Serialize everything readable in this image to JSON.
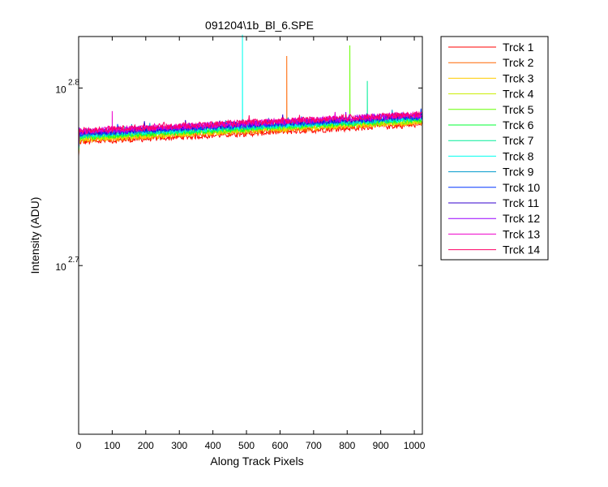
{
  "chart_data": {
    "type": "line",
    "title": "091204\\1b_Bl_6.SPE",
    "xlabel": "Along Track Pixels",
    "ylabel": "Intensity (ADU)",
    "xlim": [
      0,
      1024
    ],
    "ylim_log10": [
      2.605,
      2.829
    ],
    "yscale": "log",
    "x_ticks": [
      0,
      100,
      200,
      300,
      400,
      500,
      600,
      700,
      800,
      900,
      1000
    ],
    "y_ticks": [
      {
        "base": "10",
        "exponent": "2.7",
        "log10": 2.7
      },
      {
        "base": "10",
        "exponent": "2.8",
        "log10": 2.8
      }
    ],
    "grid": false,
    "legend_position": "outside-top-right",
    "series": [
      {
        "name": "Trck 1",
        "color": "#ff0000",
        "start_log10": 2.7695,
        "end_log10": 2.7795,
        "spikes": []
      },
      {
        "name": "Trck 2",
        "color": "#ff6600",
        "start_log10": 2.7705,
        "end_log10": 2.7805,
        "spikes": [
          [
            620,
            2.818
          ]
        ]
      },
      {
        "name": "Trck 3",
        "color": "#ffcc00",
        "start_log10": 2.771,
        "end_log10": 2.781,
        "spikes": []
      },
      {
        "name": "Trck 4",
        "color": "#ccee00",
        "start_log10": 2.7715,
        "end_log10": 2.7815,
        "spikes": []
      },
      {
        "name": "Trck 5",
        "color": "#66ff00",
        "start_log10": 2.772,
        "end_log10": 2.782,
        "spikes": [
          [
            808,
            2.824
          ]
        ]
      },
      {
        "name": "Trck 6",
        "color": "#00ff33",
        "start_log10": 2.7725,
        "end_log10": 2.7825,
        "spikes": []
      },
      {
        "name": "Trck 7",
        "color": "#00ee99",
        "start_log10": 2.773,
        "end_log10": 2.783,
        "spikes": [
          [
            860,
            2.804
          ]
        ]
      },
      {
        "name": "Trck 8",
        "color": "#00ffee",
        "start_log10": 2.7735,
        "end_log10": 2.783,
        "spikes": [
          [
            488,
            2.83
          ]
        ]
      },
      {
        "name": "Trck 9",
        "color": "#0099cc",
        "start_log10": 2.774,
        "end_log10": 2.7835,
        "spikes": [
          [
            25,
            2.791
          ]
        ]
      },
      {
        "name": "Trck 10",
        "color": "#0033ff",
        "start_log10": 2.7745,
        "end_log10": 2.784,
        "spikes": []
      },
      {
        "name": "Trck 11",
        "color": "#3300cc",
        "start_log10": 2.775,
        "end_log10": 2.7845,
        "spikes": []
      },
      {
        "name": "Trck 12",
        "color": "#9900ff",
        "start_log10": 2.7752,
        "end_log10": 2.7848,
        "spikes": [
          [
            185,
            2.788
          ]
        ]
      },
      {
        "name": "Trck 13",
        "color": "#ee00cc",
        "start_log10": 2.7755,
        "end_log10": 2.785,
        "spikes": [
          [
            100,
            2.787
          ]
        ]
      },
      {
        "name": "Trck 14",
        "color": "#ff0066",
        "start_log10": 2.776,
        "end_log10": 2.7852,
        "spikes": []
      }
    ]
  }
}
